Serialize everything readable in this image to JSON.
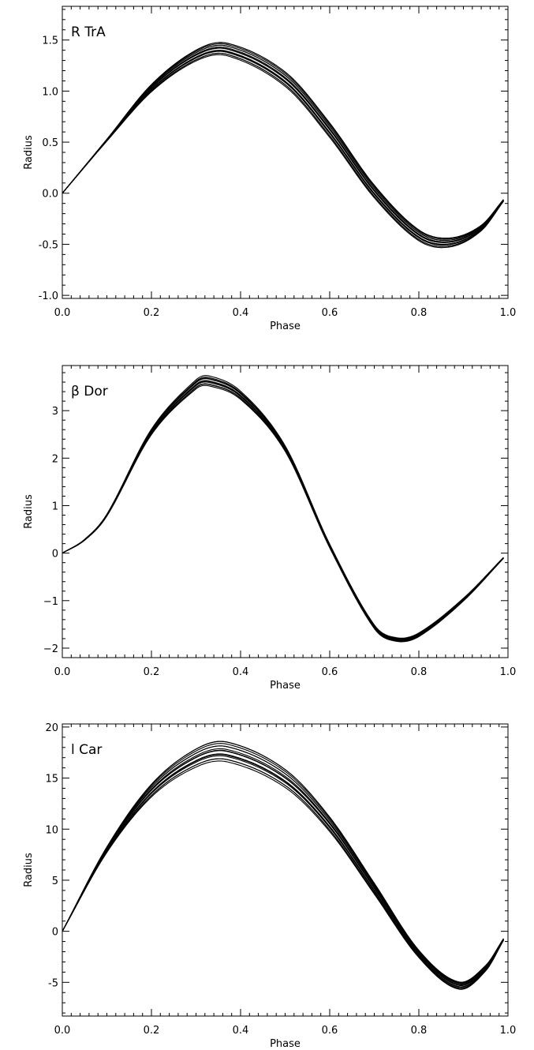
{
  "chart_data": [
    {
      "type": "line",
      "annotation": "R TrA",
      "xlabel": "Phase",
      "ylabel": "Radius",
      "xlim": [
        0.0,
        1.0
      ],
      "ylim": [
        -1.03,
        1.83
      ],
      "xticks": [
        "0.0",
        "0.2",
        "0.4",
        "0.6",
        "0.8",
        "1.0"
      ],
      "yticks": [
        "-1.0",
        "-0.5",
        "0.0",
        "0.5",
        "1.0",
        "1.5"
      ],
      "ytick_values": [
        -1.0,
        -0.5,
        0.0,
        0.5,
        1.0,
        1.5
      ],
      "grid": false,
      "curve_family": {
        "count": 14,
        "x": [
          0.0,
          0.1,
          0.2,
          0.3,
          0.37,
          0.5,
          0.6,
          0.7,
          0.8,
          0.87,
          0.94,
          0.99
        ],
        "y_center": [
          0.0,
          0.52,
          1.03,
          1.35,
          1.41,
          1.12,
          0.62,
          0.02,
          -0.41,
          -0.48,
          -0.34,
          -0.07
        ],
        "y_spread": [
          0.0,
          0.01,
          0.04,
          0.06,
          0.07,
          0.08,
          0.08,
          0.07,
          0.06,
          0.05,
          0.03,
          0.01
        ]
      }
    },
    {
      "type": "line",
      "annotation": "β Dor",
      "xlabel": "Phase",
      "ylabel": "Radius",
      "xlim": [
        0.0,
        1.0
      ],
      "ylim": [
        -2.2,
        3.95
      ],
      "xticks": [
        "0.0",
        "0.2",
        "0.4",
        "0.6",
        "0.8",
        "1.0"
      ],
      "yticks": [
        "−2",
        "−1",
        "0",
        "1",
        "2",
        "3"
      ],
      "ytick_values": [
        -2,
        -1,
        0,
        1,
        2,
        3
      ],
      "grid": false,
      "curve_family": {
        "count": 10,
        "x": [
          0.0,
          0.05,
          0.1,
          0.2,
          0.3,
          0.33,
          0.4,
          0.5,
          0.6,
          0.7,
          0.75,
          0.8,
          0.9,
          0.99
        ],
        "y_center": [
          0.0,
          0.28,
          0.8,
          2.55,
          3.55,
          3.62,
          3.32,
          2.2,
          0.15,
          -1.55,
          -1.82,
          -1.72,
          -0.98,
          -0.1
        ],
        "y_spread": [
          0.0,
          0.01,
          0.02,
          0.06,
          0.1,
          0.11,
          0.09,
          0.06,
          0.04,
          0.04,
          0.04,
          0.04,
          0.03,
          0.01
        ]
      }
    },
    {
      "type": "line",
      "annotation": "l Car",
      "xlabel": "Phase",
      "ylabel": "Radius",
      "xlim": [
        0.0,
        1.0
      ],
      "ylim": [
        -8.3,
        20.3
      ],
      "xticks": [
        "0.0",
        "0.2",
        "0.4",
        "0.6",
        "0.8",
        "1.0"
      ],
      "yticks": [
        "-5",
        "0",
        "5",
        "10",
        "15",
        "20"
      ],
      "ytick_values": [
        -5,
        0,
        5,
        10,
        15,
        20
      ],
      "grid": false,
      "curve_family": {
        "count": 14,
        "x": [
          0.0,
          0.1,
          0.2,
          0.3,
          0.37,
          0.5,
          0.6,
          0.7,
          0.8,
          0.89,
          0.95,
          0.99
        ],
        "y_center": [
          0.0,
          8.0,
          13.8,
          17.0,
          17.6,
          15.0,
          10.5,
          4.2,
          -2.2,
          -5.3,
          -3.6,
          -0.8
        ],
        "y_spread": [
          0.0,
          0.3,
          0.7,
          1.0,
          1.1,
          1.0,
          0.8,
          0.6,
          0.4,
          0.4,
          0.3,
          0.1
        ]
      }
    }
  ]
}
